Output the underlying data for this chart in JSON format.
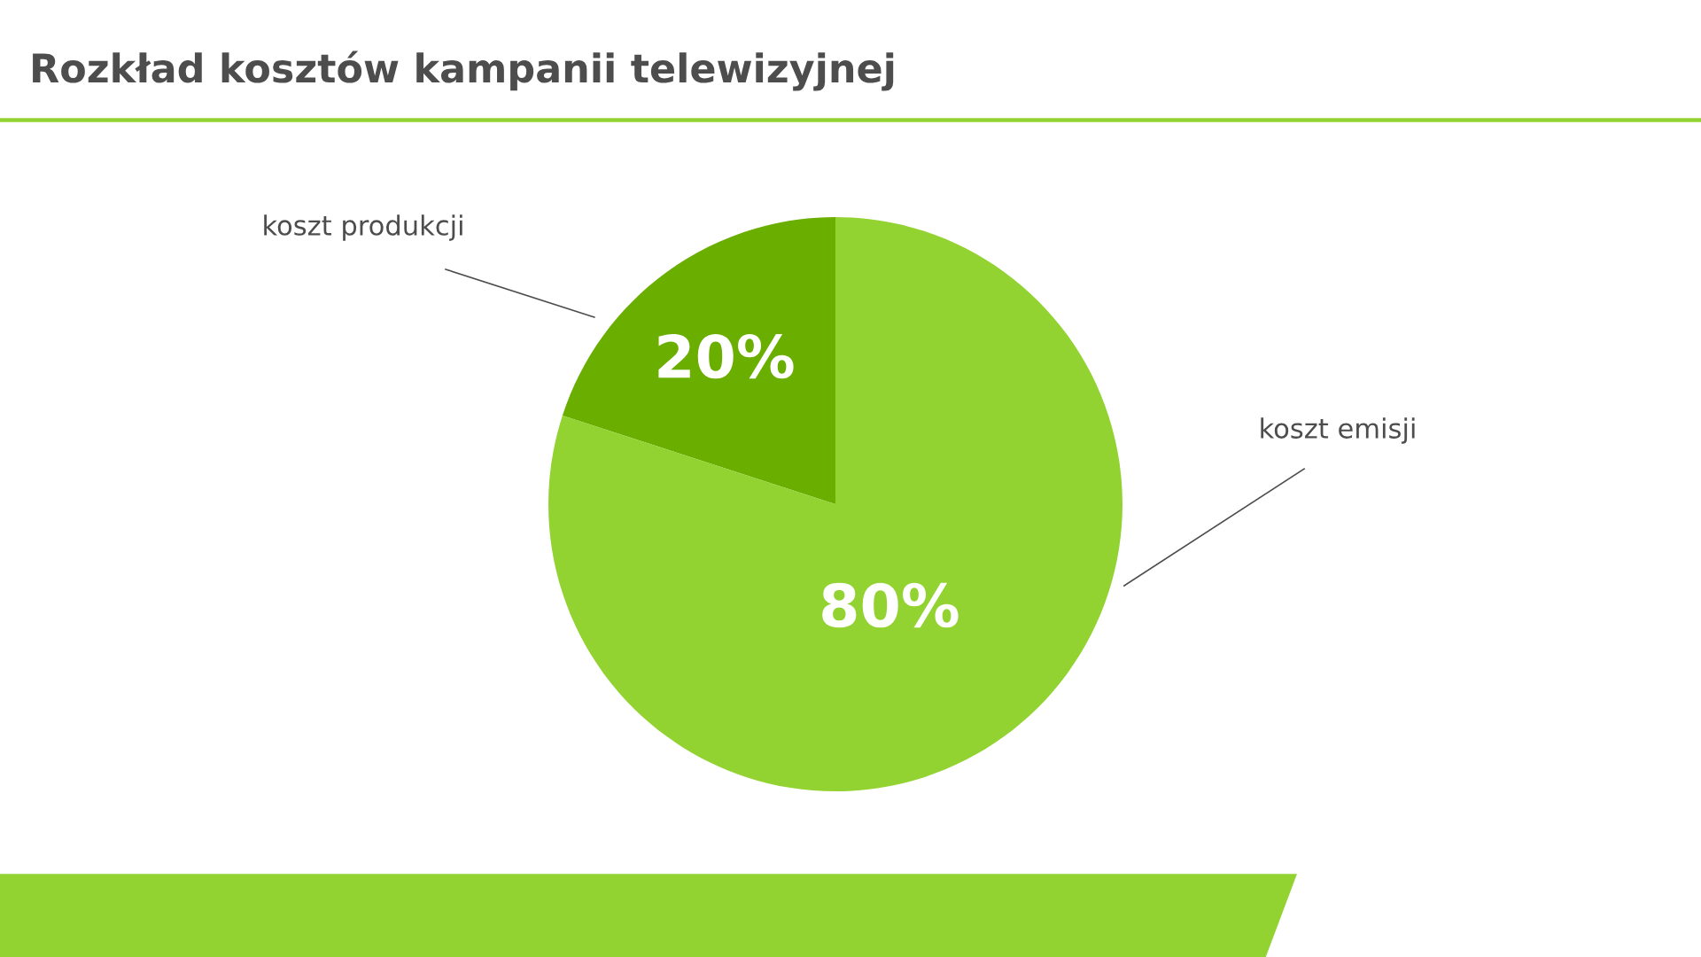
{
  "chart_data": {
    "type": "pie",
    "title": "Rozkład kosztów kampanii telewizyjnej",
    "categories": [
      "koszt produkcji",
      "koszt emisji"
    ],
    "values": [
      20,
      80
    ],
    "colors": [
      "#6aae00",
      "#92d332"
    ],
    "value_labels": [
      "20%",
      "80%"
    ]
  }
}
